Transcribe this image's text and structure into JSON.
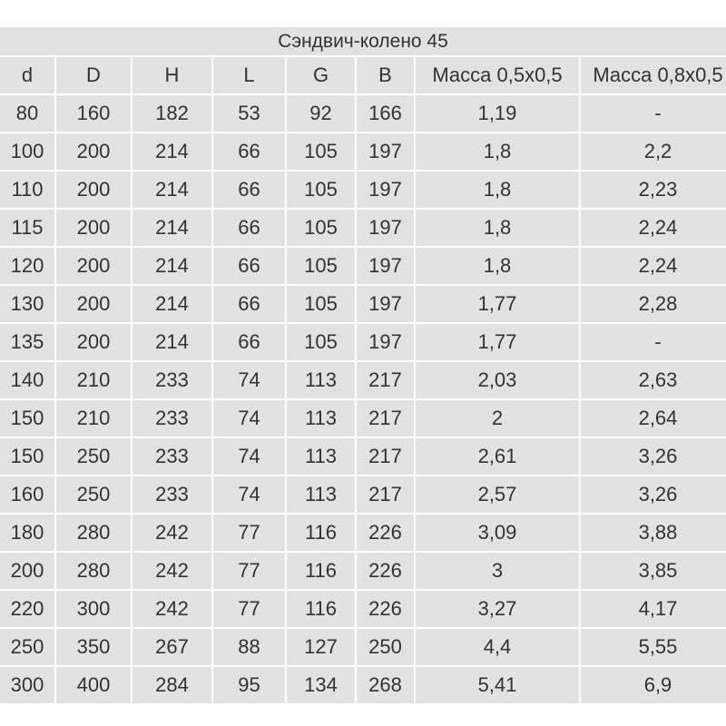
{
  "title": "Сэндвич-колено 45",
  "table": {
    "columns": [
      "d",
      "D",
      "H",
      "L",
      "G",
      "B",
      "Масса 0,5x0,5",
      "Масса 0,8x0,5"
    ],
    "rows": [
      [
        "80",
        "160",
        "182",
        "53",
        "92",
        "166",
        "1,19",
        "-"
      ],
      [
        "100",
        "200",
        "214",
        "66",
        "105",
        "197",
        "1,8",
        "2,2"
      ],
      [
        "110",
        "200",
        "214",
        "66",
        "105",
        "197",
        "1,8",
        "2,23"
      ],
      [
        "115",
        "200",
        "214",
        "66",
        "105",
        "197",
        "1,8",
        "2,24"
      ],
      [
        "120",
        "200",
        "214",
        "66",
        "105",
        "197",
        "1,8",
        "2,24"
      ],
      [
        "130",
        "200",
        "214",
        "66",
        "105",
        "197",
        "1,77",
        "2,28"
      ],
      [
        "135",
        "200",
        "214",
        "66",
        "105",
        "197",
        "1,77",
        "-"
      ],
      [
        "140",
        "210",
        "233",
        "74",
        "113",
        "217",
        "2,03",
        "2,63"
      ],
      [
        "150",
        "210",
        "233",
        "74",
        "113",
        "217",
        "2",
        "2,64"
      ],
      [
        "150",
        "250",
        "233",
        "74",
        "113",
        "217",
        "2,61",
        "3,26"
      ],
      [
        "160",
        "250",
        "233",
        "74",
        "113",
        "217",
        "2,57",
        "3,26"
      ],
      [
        "180",
        "280",
        "242",
        "77",
        "116",
        "226",
        "3,09",
        "3,88"
      ],
      [
        "200",
        "280",
        "242",
        "77",
        "116",
        "226",
        "3",
        "3,85"
      ],
      [
        "220",
        "300",
        "242",
        "77",
        "116",
        "226",
        "3,27",
        "4,17"
      ],
      [
        "250",
        "350",
        "267",
        "88",
        "127",
        "250",
        "4,4",
        "5,55"
      ],
      [
        "300",
        "400",
        "284",
        "95",
        "134",
        "268",
        "5,41",
        "6,9"
      ]
    ]
  }
}
